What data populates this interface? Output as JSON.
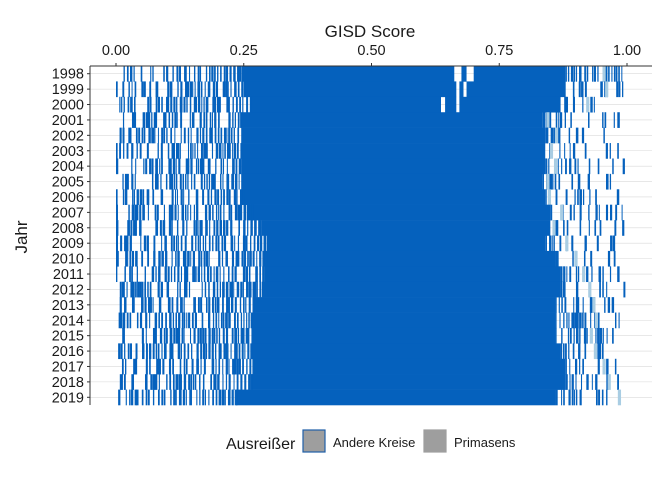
{
  "chart_data": {
    "type": "barcode",
    "title": "",
    "xlabel": "GISD Score",
    "ylabel": "Jahr",
    "x_axis_position": "top",
    "xlim": [
      0.0,
      1.0
    ],
    "x_ticks": [
      0.0,
      0.25,
      0.5,
      0.75,
      1.0
    ],
    "x_tick_labels": [
      "0.00",
      "0.25",
      "0.50",
      "0.75",
      "1.00"
    ],
    "grid": "horizontal gridlines at each year",
    "legend": {
      "title": "Ausreißer",
      "position": "bottom",
      "entries": [
        {
          "label": "Andere Kreise",
          "color": "#9e9e9e",
          "border": "#1f5fa8"
        },
        {
          "label": "Primasens",
          "color": "#9e9e9e",
          "border": "#9e9e9e"
        }
      ]
    },
    "colors": {
      "andere_kreise": "#0561bd",
      "primasens": "#a9cde3",
      "grid": "#d9d9d9",
      "axis": "#333333"
    },
    "series": [
      {
        "year": "1998",
        "dense_min": 0.25,
        "dense_max": 0.88,
        "gaps": [
          [
            0.662,
            0.676
          ],
          [
            0.686,
            0.7
          ]
        ],
        "primasens": [
          0.955
        ]
      },
      {
        "year": "1999",
        "dense_min": 0.25,
        "dense_max": 0.88,
        "gaps": [
          [
            0.666,
            0.672
          ],
          [
            0.68,
            0.686
          ]
        ],
        "primasens": [
          0.96
        ]
      },
      {
        "year": "2000",
        "dense_min": 0.265,
        "dense_max": 0.87,
        "gaps": [
          [
            0.636,
            0.644
          ],
          [
            0.666,
            0.672
          ]
        ],
        "primasens": [
          0.923
        ]
      },
      {
        "year": "2001",
        "dense_min": 0.245,
        "dense_max": 0.835,
        "gaps": [],
        "primasens": [
          0.845
        ]
      },
      {
        "year": "2002",
        "dense_min": 0.245,
        "dense_max": 0.84,
        "gaps": [],
        "primasens": [
          0.862
        ]
      },
      {
        "year": "2003",
        "dense_min": 0.245,
        "dense_max": 0.84,
        "gaps": [],
        "primasens": [
          0.852
        ]
      },
      {
        "year": "2004",
        "dense_min": 0.245,
        "dense_max": 0.84,
        "gaps": [],
        "primasens": [
          0.86
        ]
      },
      {
        "year": "2005",
        "dense_min": 0.245,
        "dense_max": 0.835,
        "gaps": [],
        "primasens": [
          0.845
        ]
      },
      {
        "year": "2006",
        "dense_min": 0.25,
        "dense_max": 0.84,
        "gaps": [],
        "primasens": [
          0.848
        ]
      },
      {
        "year": "2007",
        "dense_min": 0.265,
        "dense_max": 0.85,
        "gaps": [],
        "primasens": [
          0.872
        ]
      },
      {
        "year": "2008",
        "dense_min": 0.285,
        "dense_max": 0.85,
        "gaps": [],
        "primasens": [
          0.857
        ]
      },
      {
        "year": "2009",
        "dense_min": 0.295,
        "dense_max": 0.84,
        "gaps": [],
        "primasens": [
          0.882
        ]
      },
      {
        "year": "2010",
        "dense_min": 0.295,
        "dense_max": 0.86,
        "gaps": [],
        "primasens": [
          0.9
        ]
      },
      {
        "year": "2011",
        "dense_min": 0.29,
        "dense_max": 0.87,
        "gaps": [],
        "primasens": [
          0.915
        ]
      },
      {
        "year": "2012",
        "dense_min": 0.285,
        "dense_max": 0.87,
        "gaps": [],
        "primasens": [
          0.927
        ]
      },
      {
        "year": "2013",
        "dense_min": 0.27,
        "dense_max": 0.86,
        "gaps": [],
        "primasens": [
          0.935
        ]
      },
      {
        "year": "2014",
        "dense_min": 0.265,
        "dense_max": 0.86,
        "gaps": [],
        "primasens": [
          0.94
        ]
      },
      {
        "year": "2015",
        "dense_min": 0.265,
        "dense_max": 0.86,
        "gaps": [],
        "primasens": [
          0.93
        ]
      },
      {
        "year": "2016",
        "dense_min": 0.265,
        "dense_max": 0.87,
        "gaps": [],
        "primasens": [
          0.938
        ]
      },
      {
        "year": "2017",
        "dense_min": 0.27,
        "dense_max": 0.88,
        "gaps": [],
        "primasens": [
          0.955
        ]
      },
      {
        "year": "2018",
        "dense_min": 0.265,
        "dense_max": 0.88,
        "gaps": [],
        "primasens": [
          0.965
        ]
      },
      {
        "year": "2019",
        "dense_min": 0.235,
        "dense_max": 0.86,
        "gaps": [],
        "primasens": [
          0.985
        ]
      }
    ]
  }
}
